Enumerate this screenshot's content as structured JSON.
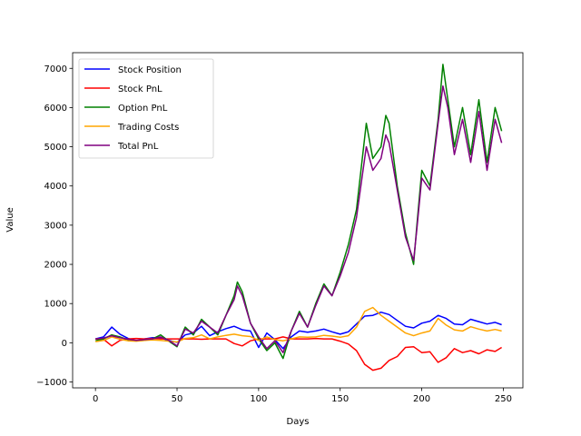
{
  "chart_data": {
    "type": "line",
    "title": "",
    "xlabel": "Days",
    "ylabel": "Value",
    "xlim": [
      -14,
      262
    ],
    "ylim": [
      -1150,
      7400
    ],
    "xticks": [
      0,
      50,
      100,
      150,
      200,
      250
    ],
    "yticks": [
      -1000,
      0,
      1000,
      2000,
      3000,
      4000,
      5000,
      6000,
      7000
    ],
    "grid": false,
    "legend_position": "upper-left",
    "series": [
      {
        "name": "Stock Position",
        "color": "#0000ff",
        "x": [
          0,
          5,
          10,
          15,
          20,
          25,
          30,
          35,
          40,
          45,
          50,
          55,
          60,
          65,
          70,
          75,
          80,
          85,
          90,
          95,
          100,
          105,
          110,
          115,
          120,
          125,
          130,
          135,
          140,
          145,
          150,
          155,
          160,
          165,
          170,
          175,
          180,
          185,
          190,
          195,
          200,
          205,
          210,
          215,
          220,
          225,
          230,
          235,
          240,
          245,
          249
        ],
        "y": [
          100,
          150,
          400,
          220,
          110,
          50,
          100,
          130,
          120,
          60,
          10,
          200,
          250,
          420,
          180,
          280,
          360,
          420,
          330,
          300,
          -120,
          250,
          80,
          -150,
          150,
          300,
          270,
          300,
          350,
          280,
          220,
          280,
          480,
          680,
          700,
          780,
          720,
          570,
          420,
          380,
          500,
          550,
          700,
          620,
          480,
          460,
          600,
          540,
          480,
          520,
          460
        ]
      },
      {
        "name": "Stock PnL",
        "color": "#ff0000",
        "x": [
          0,
          5,
          10,
          15,
          20,
          25,
          30,
          35,
          40,
          45,
          50,
          55,
          60,
          65,
          70,
          75,
          80,
          85,
          90,
          95,
          100,
          105,
          110,
          115,
          120,
          125,
          130,
          135,
          140,
          145,
          150,
          155,
          160,
          165,
          170,
          175,
          180,
          185,
          190,
          195,
          200,
          205,
          210,
          215,
          220,
          225,
          230,
          235,
          240,
          245,
          249
        ],
        "y": [
          100,
          90,
          -80,
          60,
          100,
          110,
          100,
          110,
          100,
          100,
          100,
          100,
          100,
          90,
          100,
          100,
          100,
          -20,
          -80,
          50,
          100,
          100,
          100,
          150,
          100,
          100,
          100,
          110,
          100,
          100,
          40,
          -30,
          -200,
          -550,
          -700,
          -650,
          -450,
          -350,
          -120,
          -100,
          -250,
          -230,
          -500,
          -380,
          -150,
          -250,
          -200,
          -280,
          -180,
          -220,
          -120
        ]
      },
      {
        "name": "Option PnL",
        "color": "#008000",
        "x": [
          0,
          5,
          10,
          15,
          20,
          25,
          30,
          35,
          40,
          45,
          50,
          55,
          60,
          65,
          70,
          75,
          80,
          85,
          87,
          90,
          95,
          100,
          105,
          110,
          115,
          120,
          125,
          130,
          135,
          140,
          145,
          150,
          155,
          160,
          163,
          166,
          170,
          175,
          178,
          180,
          185,
          190,
          195,
          197,
          200,
          205,
          210,
          213,
          216,
          220,
          225,
          230,
          235,
          240,
          245,
          249
        ],
        "y": [
          50,
          100,
          200,
          150,
          80,
          50,
          60,
          100,
          200,
          40,
          -100,
          400,
          200,
          600,
          400,
          200,
          700,
          1200,
          1550,
          1300,
          500,
          100,
          -200,
          0,
          -400,
          300,
          800,
          400,
          1000,
          1500,
          1200,
          1800,
          2500,
          3400,
          4500,
          5600,
          4700,
          5000,
          5800,
          5600,
          4000,
          2800,
          2000,
          3000,
          4400,
          4000,
          5700,
          7100,
          6200,
          5000,
          6000,
          4800,
          6200,
          4600,
          6000,
          5400
        ]
      },
      {
        "name": "Trading Costs",
        "color": "#ffa500",
        "x": [
          0,
          5,
          10,
          15,
          20,
          25,
          30,
          35,
          40,
          45,
          50,
          55,
          60,
          65,
          70,
          75,
          80,
          85,
          90,
          95,
          100,
          105,
          110,
          115,
          120,
          125,
          130,
          135,
          140,
          145,
          150,
          155,
          160,
          165,
          170,
          175,
          180,
          185,
          190,
          195,
          200,
          205,
          210,
          215,
          220,
          225,
          230,
          235,
          240,
          245,
          249
        ],
        "y": [
          30,
          60,
          150,
          90,
          50,
          40,
          60,
          70,
          60,
          40,
          20,
          110,
          130,
          200,
          100,
          150,
          190,
          220,
          180,
          160,
          60,
          150,
          80,
          50,
          100,
          150,
          140,
          150,
          190,
          170,
          140,
          180,
          400,
          800,
          900,
          700,
          550,
          400,
          250,
          180,
          250,
          300,
          620,
          450,
          330,
          300,
          410,
          350,
          300,
          340,
          300
        ]
      },
      {
        "name": "Total PnL",
        "color": "#800080",
        "x": [
          0,
          5,
          10,
          15,
          20,
          25,
          30,
          35,
          40,
          45,
          50,
          55,
          60,
          65,
          70,
          75,
          80,
          85,
          87,
          90,
          95,
          100,
          105,
          110,
          115,
          120,
          125,
          130,
          135,
          140,
          145,
          150,
          155,
          160,
          163,
          166,
          170,
          175,
          178,
          180,
          185,
          190,
          195,
          197,
          200,
          205,
          210,
          213,
          216,
          220,
          225,
          230,
          235,
          240,
          245,
          249
        ],
        "y": [
          100,
          120,
          180,
          130,
          90,
          60,
          80,
          100,
          150,
          60,
          -80,
          350,
          250,
          550,
          400,
          250,
          700,
          1100,
          1450,
          1200,
          500,
          150,
          -150,
          50,
          -250,
          300,
          750,
          400,
          950,
          1450,
          1200,
          1700,
          2300,
          3200,
          4100,
          5000,
          4400,
          4700,
          5300,
          5100,
          3900,
          2700,
          2100,
          2900,
          4200,
          3900,
          5600,
          6550,
          6000,
          4800,
          5700,
          4600,
          5900,
          4400,
          5700,
          5100
        ]
      }
    ]
  }
}
